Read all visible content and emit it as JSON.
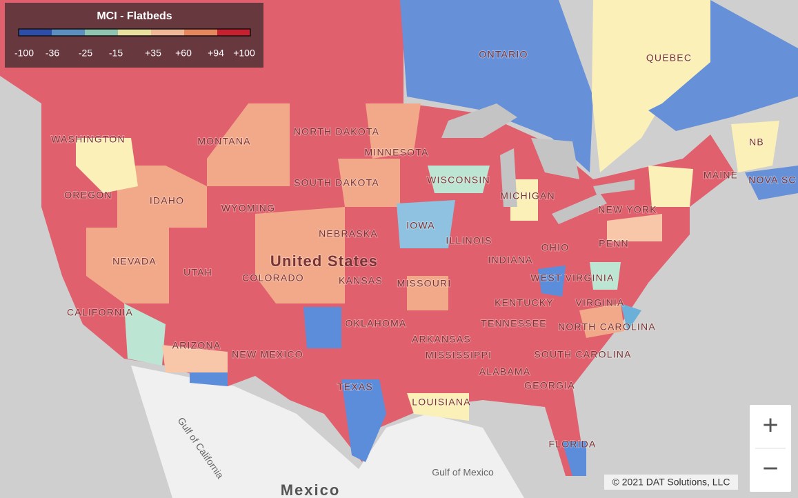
{
  "legend": {
    "title": "MCI - Flatbeds",
    "labels": [
      "-100",
      "-36",
      "-25",
      "-15",
      "+35",
      "+60",
      "+94",
      "+100"
    ],
    "colors": [
      "#2d4ea8",
      "#5a8fc0",
      "#8fc4b0",
      "#e9e0a0",
      "#f0b896",
      "#e8875e",
      "#c8202e"
    ]
  },
  "map_labels": [
    "ONTARIO",
    "QUEBEC",
    "NB",
    "NOVA SC",
    "WASHINGTON",
    "MONTANA",
    "NORTH DAKOTA",
    "MINNESOTA",
    "SOUTH DAKOTA",
    "WISCONSIN",
    "MICHIGAN",
    "OREGON",
    "IDAHO",
    "WYOMING",
    "IOWA",
    "NEBRASKA",
    "NEVADA",
    "United States",
    "UTAH",
    "COLORADO",
    "KANSAS",
    "MISSOURI",
    "ILLINOIS",
    "INDIANA",
    "OHIO",
    "PENN",
    "NEW YORK",
    "MAINE",
    "WEST VIRGINIA",
    "VIRGINIA",
    "KENTUCKY",
    "TENNESSEE",
    "NORTH CAROLINA",
    "SOUTH CAROLINA",
    "CALIFORNIA",
    "ARIZONA",
    "NEW MEXICO",
    "OKLAHOMA",
    "ARKANSAS",
    "MISSISSIPPI",
    "ALABAMA",
    "GEORGIA",
    "TEXAS",
    "LOUISIANA",
    "FLORIDA",
    "Gulf of California",
    "Gulf of Mexico",
    "Mexico"
  ],
  "controls": {
    "zoom_in": "+",
    "zoom_out": "−"
  },
  "attribution": "© 2021 DAT Solutions, LLC"
}
